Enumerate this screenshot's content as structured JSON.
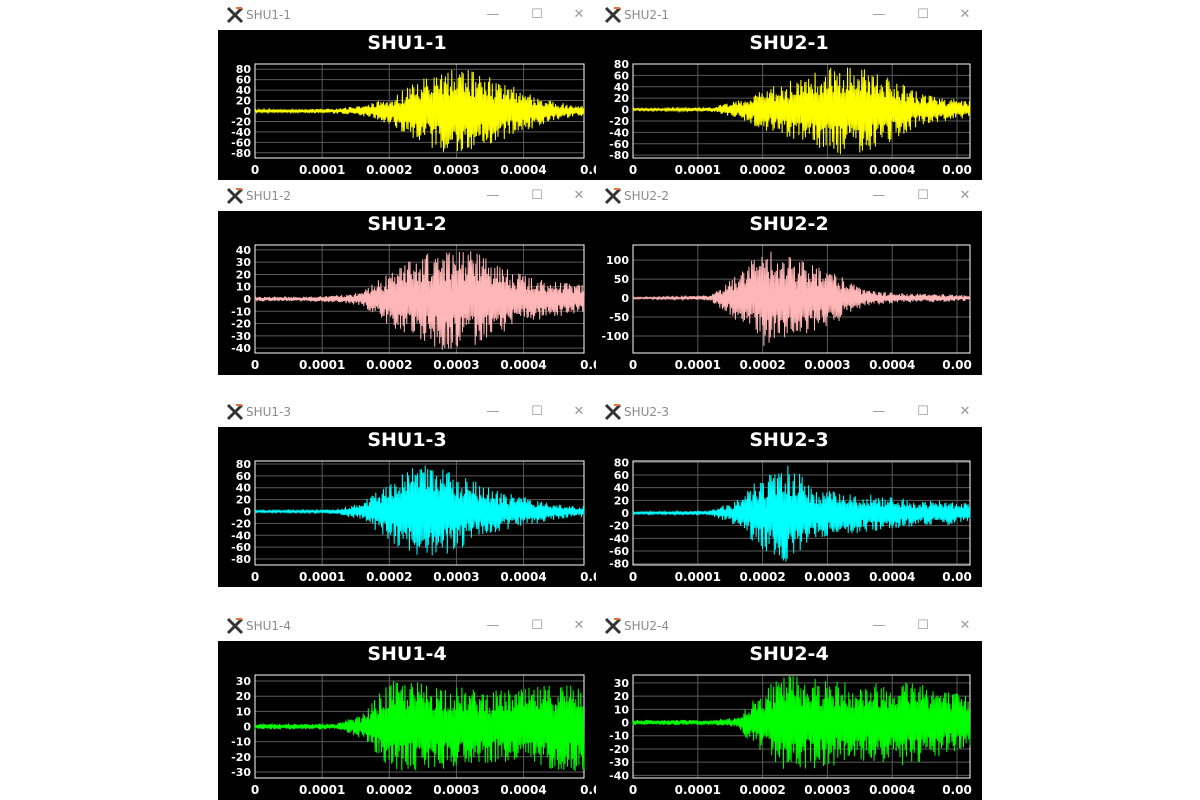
{
  "windows": [
    {
      "id": "w11",
      "title": "SHU1-1",
      "color": "#ffff00",
      "controls": {
        "minimize": "—",
        "maximize": "☐",
        "close": "✕"
      }
    },
    {
      "id": "w21",
      "title": "SHU2-1",
      "color": "#ffff00",
      "controls": {
        "minimize": "—",
        "maximize": "☐",
        "close": "✕"
      }
    },
    {
      "id": "w12",
      "title": "SHU1-2",
      "color": "#ffb6b6",
      "controls": {
        "minimize": "—",
        "maximize": "☐",
        "close": "✕"
      }
    },
    {
      "id": "w22",
      "title": "SHU2-2",
      "color": "#ffb6b6",
      "controls": {
        "minimize": "—",
        "maximize": "☐",
        "close": "✕"
      }
    },
    {
      "id": "w13",
      "title": "SHU1-3",
      "color": "#00ffff",
      "controls": {
        "minimize": "—",
        "maximize": "☐",
        "close": "✕"
      }
    },
    {
      "id": "w23",
      "title": "SHU2-3",
      "color": "#00ffff",
      "controls": {
        "minimize": "—",
        "maximize": "☐",
        "close": "✕"
      }
    },
    {
      "id": "w14",
      "title": "SHU1-4",
      "color": "#00ff00",
      "controls": {
        "minimize": "—",
        "maximize": "☐",
        "close": "✕"
      }
    },
    {
      "id": "w24",
      "title": "SHU2-4",
      "color": "#00ff00",
      "controls": {
        "minimize": "—",
        "maximize": "☐",
        "close": "✕"
      }
    }
  ],
  "chart_data": [
    {
      "type": "line",
      "title": "SHU1-1",
      "xticks": [
        "0",
        "0.0001",
        "0.0002",
        "0.0003",
        "0.0004",
        "0.0"
      ],
      "yticks": [
        "80",
        "60",
        "40",
        "20",
        "0",
        "-20",
        "-40",
        "-60",
        "-80"
      ],
      "xlim": [
        0,
        0.00049
      ],
      "ylim": [
        -90,
        90
      ],
      "grid": true,
      "series": [
        {
          "color": "#ffff00",
          "x": [
            0,
            4e-05,
            8e-05,
            0.00012,
            0.00016,
            0.0002,
            0.00024,
            0.00028,
            0.00032,
            0.00036,
            0.0004,
            0.00044,
            0.00048
          ],
          "amplitude": [
            3,
            3,
            4,
            5,
            10,
            25,
            55,
            85,
            80,
            60,
            40,
            20,
            10
          ]
        }
      ]
    },
    {
      "type": "line",
      "title": "SHU2-1",
      "xticks": [
        "0",
        "0.0001",
        "0.0002",
        "0.0003",
        "0.0004",
        "0.00"
      ],
      "yticks": [
        "80",
        "60",
        "40",
        "20",
        "0",
        "-20",
        "-40",
        "-60",
        "-80"
      ],
      "xlim": [
        0,
        0.00052
      ],
      "ylim": [
        -85,
        80
      ],
      "grid": true,
      "series": [
        {
          "color": "#ffff00",
          "x": [
            0,
            4e-05,
            8e-05,
            0.00012,
            0.00016,
            0.0002,
            0.00024,
            0.00028,
            0.00032,
            0.00036,
            0.0004,
            0.00044,
            0.00048,
            0.00052
          ],
          "amplitude": [
            2,
            2,
            3,
            4,
            15,
            35,
            50,
            65,
            80,
            75,
            55,
            30,
            20,
            15
          ]
        }
      ]
    },
    {
      "type": "line",
      "title": "SHU1-2",
      "xticks": [
        "0",
        "0.0001",
        "0.0002",
        "0.0003",
        "0.0004",
        "0.0"
      ],
      "yticks": [
        "40",
        "30",
        "20",
        "10",
        "0",
        "-10",
        "-20",
        "-30",
        "-40"
      ],
      "xlim": [
        0,
        0.00049
      ],
      "ylim": [
        -44,
        44
      ],
      "grid": true,
      "series": [
        {
          "color": "#ffb6b6",
          "x": [
            0,
            4e-05,
            8e-05,
            0.00012,
            0.00016,
            0.0002,
            0.00024,
            0.00028,
            0.00032,
            0.00036,
            0.0004,
            0.00044,
            0.00048
          ],
          "amplitude": [
            2,
            2,
            2,
            3,
            6,
            22,
            35,
            42,
            40,
            30,
            20,
            15,
            12
          ]
        }
      ]
    },
    {
      "type": "line",
      "title": "SHU2-2",
      "xticks": [
        "0",
        "0.0001",
        "0.0002",
        "0.0003",
        "0.0004",
        "0.00"
      ],
      "yticks": [
        "100",
        "50",
        "0",
        "-50",
        "-100"
      ],
      "xlim": [
        0,
        0.00052
      ],
      "ylim": [
        -145,
        140
      ],
      "grid": true,
      "series": [
        {
          "color": "#ffb6b6",
          "x": [
            0,
            4e-05,
            8e-05,
            0.00012,
            0.00016,
            0.0002,
            0.00024,
            0.00028,
            0.00032,
            0.00036,
            0.0004,
            0.00044,
            0.00048,
            0.00052
          ],
          "amplitude": [
            2,
            3,
            4,
            8,
            60,
            130,
            110,
            90,
            60,
            20,
            15,
            12,
            10,
            8
          ]
        }
      ]
    },
    {
      "type": "line",
      "title": "SHU1-3",
      "xticks": [
        "0",
        "0.0001",
        "0.0002",
        "0.0003",
        "0.0004",
        "0.0"
      ],
      "yticks": [
        "80",
        "60",
        "40",
        "20",
        "0",
        "-20",
        "-40",
        "-60",
        "-80"
      ],
      "xlim": [
        0,
        0.00049
      ],
      "ylim": [
        -90,
        85
      ],
      "grid": true,
      "series": [
        {
          "color": "#00ffff",
          "x": [
            0,
            4e-05,
            8e-05,
            0.00012,
            0.00016,
            0.0002,
            0.00024,
            0.00028,
            0.00032,
            0.00036,
            0.0004,
            0.00044,
            0.00048
          ],
          "amplitude": [
            2,
            2,
            2,
            4,
            15,
            50,
            80,
            75,
            55,
            35,
            25,
            15,
            10
          ]
        }
      ]
    },
    {
      "type": "line",
      "title": "SHU2-3",
      "xticks": [
        "0",
        "0.0001",
        "0.0002",
        "0.0003",
        "0.0004",
        "0.00"
      ],
      "yticks": [
        "80",
        "60",
        "40",
        "20",
        "0",
        "-20",
        "-40",
        "-60",
        "-80"
      ],
      "xlim": [
        0,
        0.00052
      ],
      "ylim": [
        -82,
        82
      ],
      "grid": true,
      "series": [
        {
          "color": "#00ffff",
          "x": [
            0,
            4e-05,
            8e-05,
            0.00012,
            0.00016,
            0.0002,
            0.00024,
            0.00028,
            0.00032,
            0.00036,
            0.0004,
            0.00044,
            0.00048,
            0.00052
          ],
          "amplitude": [
            2,
            2,
            3,
            4,
            20,
            60,
            80,
            40,
            35,
            30,
            25,
            20,
            20,
            15
          ]
        }
      ]
    },
    {
      "type": "line",
      "title": "SHU1-4",
      "xticks": [
        "0",
        "0.0001",
        "0.0002",
        "0.0003",
        "0.0004",
        "0.0"
      ],
      "yticks": [
        "30",
        "20",
        "10",
        "0",
        "-10",
        "-20",
        "-30"
      ],
      "xlim": [
        0,
        0.00049
      ],
      "ylim": [
        -34,
        34
      ],
      "grid": true,
      "series": [
        {
          "color": "#00ff00",
          "x": [
            0,
            4e-05,
            8e-05,
            0.00012,
            0.00016,
            0.0002,
            0.00024,
            0.00028,
            0.00032,
            0.00036,
            0.0004,
            0.00044,
            0.00048
          ],
          "amplitude": [
            2,
            2,
            2,
            2,
            8,
            30,
            30,
            28,
            25,
            24,
            25,
            28,
            30
          ]
        }
      ]
    },
    {
      "type": "line",
      "title": "SHU2-4",
      "xticks": [
        "0",
        "0.0001",
        "0.0002",
        "0.0003",
        "0.0004",
        "0.00"
      ],
      "yticks": [
        "30",
        "20",
        "10",
        "0",
        "-10",
        "-20",
        "-30",
        "-40"
      ],
      "xlim": [
        0,
        0.00052
      ],
      "ylim": [
        -42,
        36
      ],
      "grid": true,
      "series": [
        {
          "color": "#00ff00",
          "x": [
            0,
            4e-05,
            8e-05,
            0.00012,
            0.00016,
            0.0002,
            0.00024,
            0.00028,
            0.00032,
            0.00036,
            0.0004,
            0.00044,
            0.00048,
            0.00052
          ],
          "amplitude": [
            2,
            2,
            2,
            2,
            4,
            25,
            38,
            35,
            32,
            30,
            32,
            35,
            25,
            20
          ]
        }
      ]
    }
  ]
}
